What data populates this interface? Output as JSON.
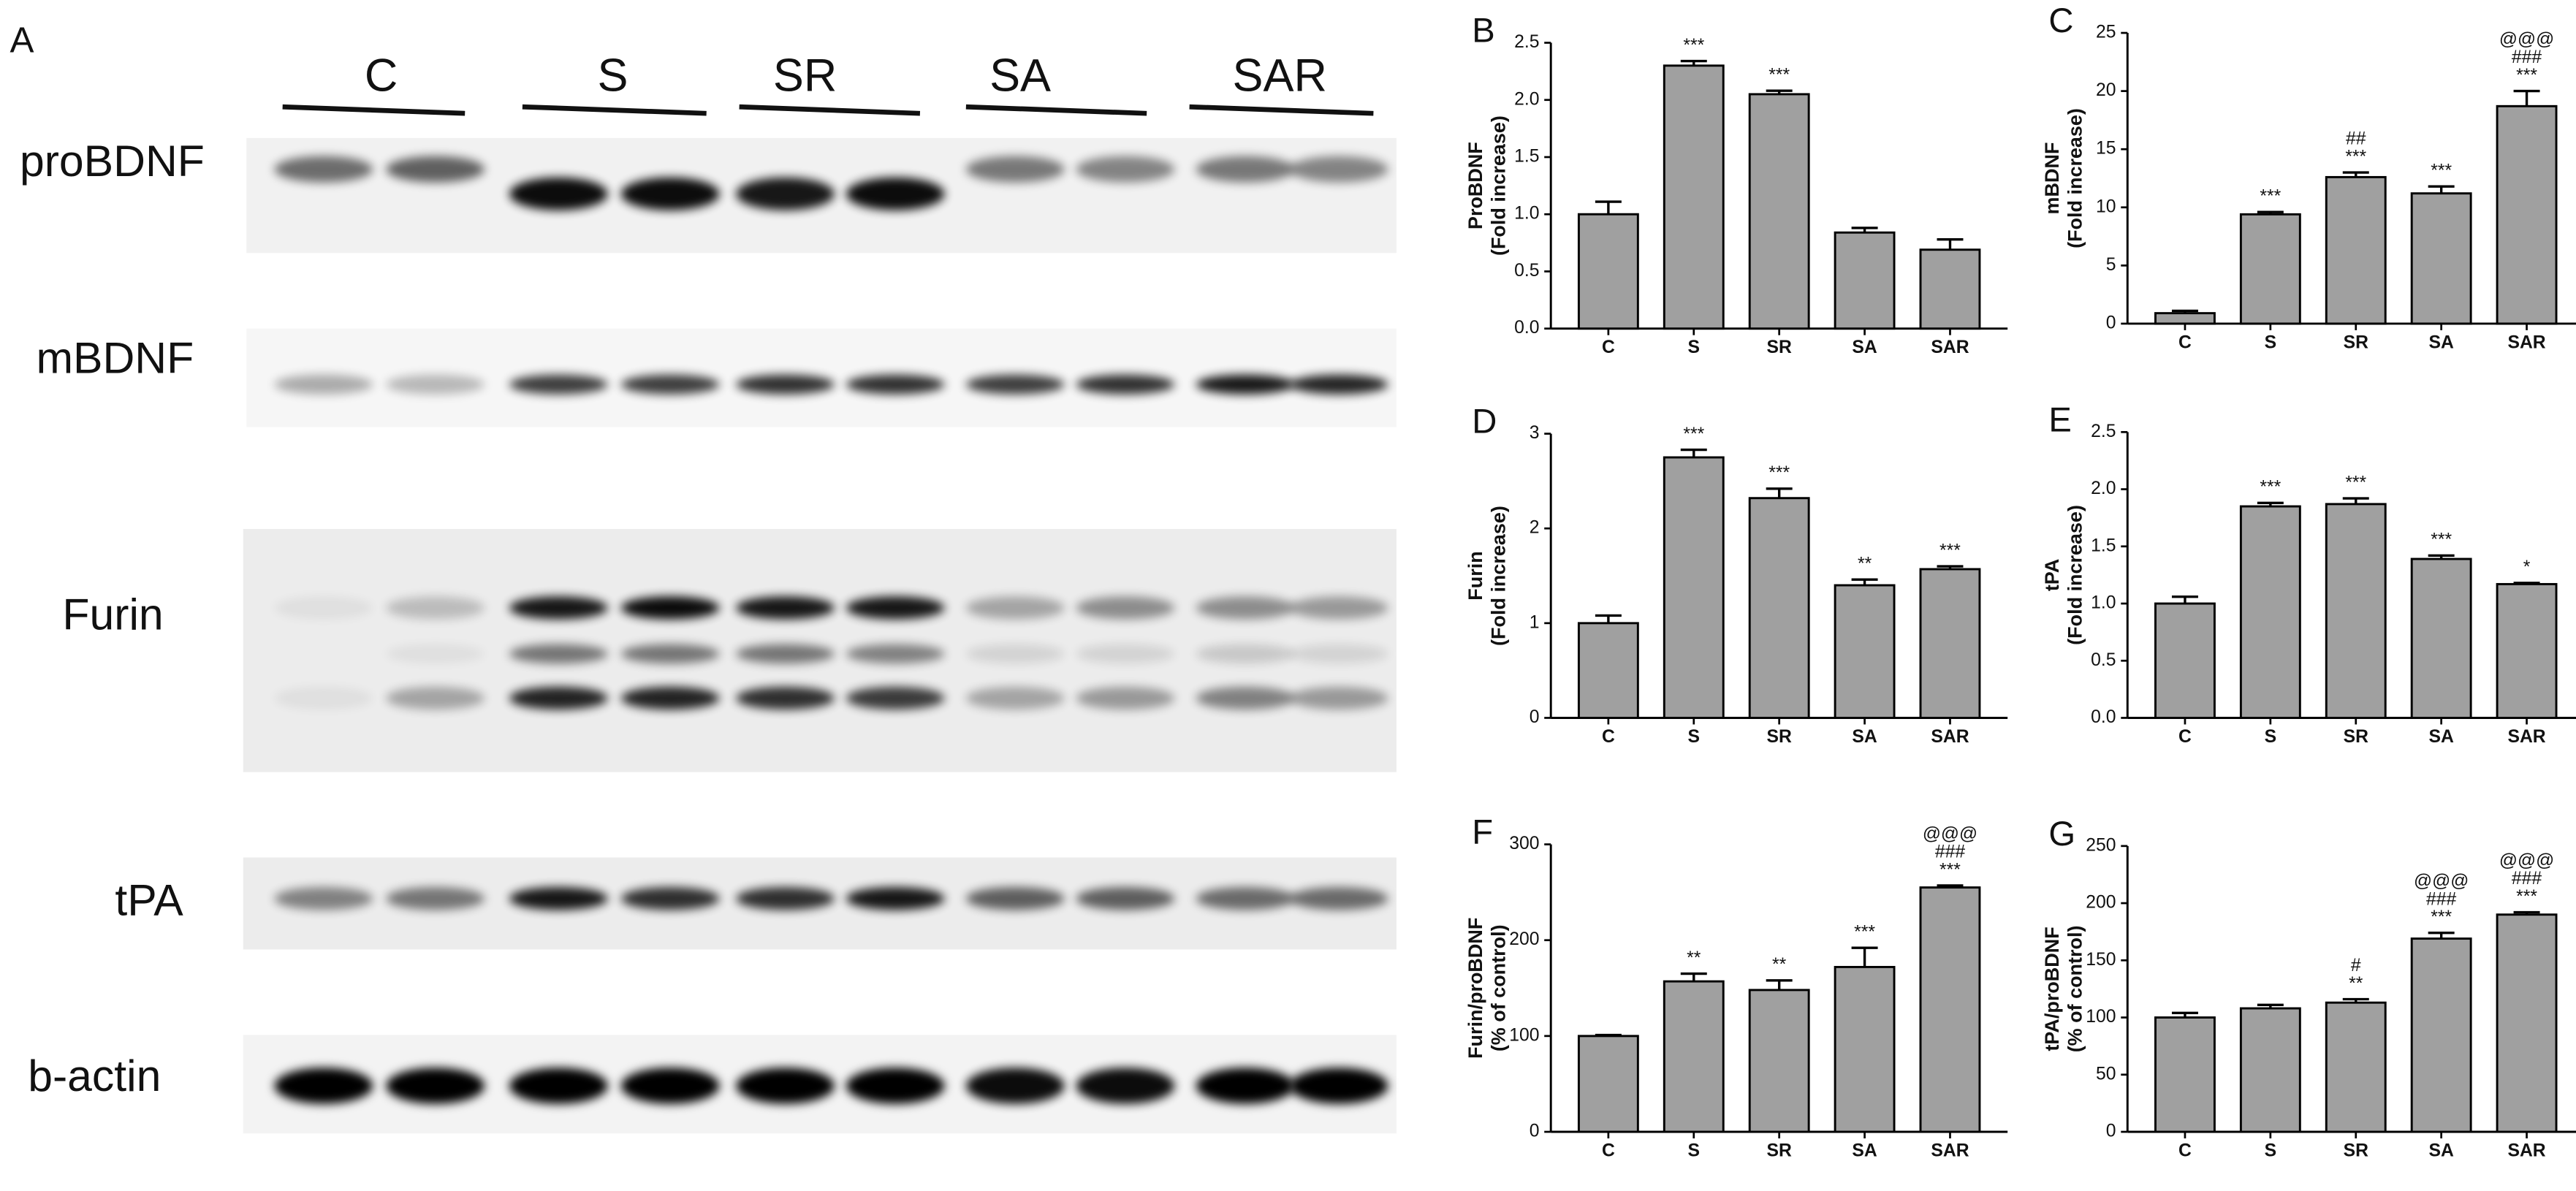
{
  "blot": {
    "panel": "A",
    "groups": [
      "C",
      "S",
      "SR",
      "SA",
      "SAR"
    ],
    "rows": [
      "proBDNF",
      "mBDNF",
      "Furin",
      "tPA",
      "b-actin"
    ]
  },
  "chart_data": [
    {
      "type": "bar",
      "panel": "B",
      "ylabel": [
        "ProBDNF",
        "(Fold increase)"
      ],
      "categories": [
        "C",
        "S",
        "SR",
        "SA",
        "SAR"
      ],
      "values": [
        1.0,
        2.3,
        2.05,
        0.84,
        0.69
      ],
      "errors": [
        0.11,
        0.04,
        0.03,
        0.04,
        0.09
      ],
      "annotations": [
        null,
        [
          "***"
        ],
        [
          "***"
        ],
        null,
        null
      ],
      "color": "#a0a0a0",
      "ylim": [
        0,
        2.5
      ],
      "yticks": [
        {
          "value": 0,
          "label": "0.0"
        },
        0.5,
        {
          "value": 1,
          "label": "1.0"
        },
        1.5,
        {
          "value": 2,
          "label": "2.0"
        },
        2.5
      ]
    },
    {
      "type": "bar",
      "panel": "C",
      "ylabel": [
        "mBDNF",
        "(Fold increase)"
      ],
      "categories": [
        "C",
        "S",
        "SR",
        "SA",
        "SAR"
      ],
      "values": [
        0.9,
        9.4,
        12.6,
        11.2,
        18.7
      ],
      "errors": [
        0.2,
        0.2,
        0.4,
        0.6,
        1.3
      ],
      "annotations": [
        null,
        [
          "***"
        ],
        [
          "##",
          "***"
        ],
        [
          "***"
        ],
        [
          "@@@",
          "###",
          "***"
        ]
      ],
      "color": "#a0a0a0",
      "ylim": [
        0,
        25
      ],
      "yticks": [
        0,
        5,
        10,
        15,
        20,
        25
      ]
    },
    {
      "type": "bar",
      "panel": "D",
      "ylabel": [
        "Furin",
        "(Fold increase)"
      ],
      "categories": [
        "C",
        "S",
        "SR",
        "SA",
        "SAR"
      ],
      "values": [
        1.0,
        2.75,
        2.32,
        1.4,
        1.57
      ],
      "errors": [
        0.08,
        0.08,
        0.1,
        0.06,
        0.03
      ],
      "annotations": [
        null,
        [
          "***"
        ],
        [
          "***"
        ],
        [
          "**"
        ],
        [
          "***"
        ]
      ],
      "color": "#a0a0a0",
      "ylim": [
        0,
        3
      ],
      "yticks": [
        0,
        1,
        2,
        3
      ]
    },
    {
      "type": "bar",
      "panel": "E",
      "ylabel": [
        "tPA",
        "(Fold increase)"
      ],
      "categories": [
        "C",
        "S",
        "SR",
        "SA",
        "SAR"
      ],
      "values": [
        1.0,
        1.85,
        1.87,
        1.39,
        1.17
      ],
      "errors": [
        0.06,
        0.03,
        0.05,
        0.03,
        0.01
      ],
      "annotations": [
        null,
        [
          "***"
        ],
        [
          "***"
        ],
        [
          "***"
        ],
        [
          "*"
        ]
      ],
      "color": "#a0a0a0",
      "ylim": [
        0,
        2.5
      ],
      "yticks": [
        {
          "value": 0,
          "label": "0.0"
        },
        0.5,
        {
          "value": 1,
          "label": "1.0"
        },
        1.5,
        {
          "value": 2,
          "label": "2.0"
        },
        2.5
      ]
    },
    {
      "type": "bar",
      "panel": "F",
      "ylabel": [
        "Furin/proBDNF",
        "(% of control)"
      ],
      "categories": [
        "C",
        "S",
        "SR",
        "SA",
        "SAR"
      ],
      "values": [
        100,
        157,
        148,
        172,
        255
      ],
      "errors": [
        1,
        8,
        10,
        20,
        2
      ],
      "annotations": [
        null,
        [
          "**"
        ],
        [
          "**"
        ],
        [
          "***"
        ],
        [
          "@@@",
          "###",
          "***"
        ]
      ],
      "color": "#a0a0a0",
      "ylim": [
        0,
        300
      ],
      "yticks": [
        0,
        100,
        200,
        300
      ]
    },
    {
      "type": "bar",
      "panel": "G",
      "ylabel": [
        "tPA/proBDNF",
        "(% of control)"
      ],
      "categories": [
        "C",
        "S",
        "SR",
        "SA",
        "SAR"
      ],
      "values": [
        100,
        108,
        113,
        169,
        190
      ],
      "errors": [
        4,
        3,
        3,
        5,
        2
      ],
      "annotations": [
        null,
        null,
        [
          "#",
          "**"
        ],
        [
          "@@@",
          "###",
          "***"
        ],
        [
          "@@@",
          "###",
          "***"
        ]
      ],
      "color": "#a0a0a0",
      "ylim": [
        0,
        250
      ],
      "yticks": [
        0,
        50,
        100,
        150,
        200,
        250
      ]
    }
  ]
}
